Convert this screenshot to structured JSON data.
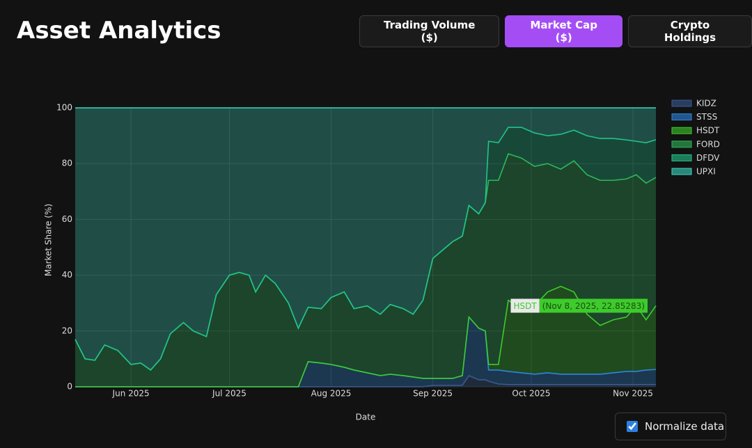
{
  "header": {
    "title": "Asset Analytics",
    "tabs": [
      {
        "label": "Trading Volume ($)",
        "active": false
      },
      {
        "label": "Market Cap ($)",
        "active": true
      },
      {
        "label": "Crypto Holdings",
        "active": false
      }
    ]
  },
  "controls": {
    "normalize": {
      "label": "Normalize data",
      "checked": true
    }
  },
  "chart_data": {
    "type": "stacked-area",
    "x_label": "Date",
    "y_label": "Market Share (%)",
    "x": [
      "2025-05-15",
      "2025-05-18",
      "2025-05-21",
      "2025-05-24",
      "2025-05-28",
      "2025-06-01",
      "2025-06-04",
      "2025-06-07",
      "2025-06-10",
      "2025-06-13",
      "2025-06-17",
      "2025-06-20",
      "2025-06-24",
      "2025-06-27",
      "2025-07-01",
      "2025-07-04",
      "2025-07-07",
      "2025-07-09",
      "2025-07-12",
      "2025-07-15",
      "2025-07-19",
      "2025-07-22",
      "2025-07-25",
      "2025-07-29",
      "2025-08-01",
      "2025-08-05",
      "2025-08-08",
      "2025-08-12",
      "2025-08-16",
      "2025-08-19",
      "2025-08-23",
      "2025-08-26",
      "2025-08-29",
      "2025-09-01",
      "2025-09-04",
      "2025-09-07",
      "2025-09-10",
      "2025-09-12",
      "2025-09-15",
      "2025-09-17",
      "2025-09-18",
      "2025-09-21",
      "2025-09-24",
      "2025-09-28",
      "2025-10-02",
      "2025-10-06",
      "2025-10-10",
      "2025-10-14",
      "2025-10-18",
      "2025-10-22",
      "2025-10-26",
      "2025-10-30",
      "2025-11-02",
      "2025-11-05",
      "2025-11-08"
    ],
    "xlim": [
      "2025-05-15",
      "2025-11-08"
    ],
    "xticks": [
      {
        "value": "2025-06-01",
        "label": "Jun 2025"
      },
      {
        "value": "2025-07-01",
        "label": "Jul 2025"
      },
      {
        "value": "2025-08-01",
        "label": "Aug 2025"
      },
      {
        "value": "2025-09-01",
        "label": "Sep 2025"
      },
      {
        "value": "2025-10-01",
        "label": "Oct 2025"
      },
      {
        "value": "2025-11-01",
        "label": "Nov 2025"
      }
    ],
    "ylim": [
      0,
      100
    ],
    "yticks": [
      0,
      20,
      40,
      60,
      80,
      100
    ],
    "grid": true,
    "series": [
      {
        "name": "KIDZ",
        "color": "#3b5a92",
        "values": [
          0,
          0,
          0,
          0,
          0,
          0,
          0,
          0,
          0,
          0,
          0,
          0,
          0,
          0,
          0,
          0,
          0,
          0,
          0,
          0,
          0,
          0,
          0,
          0,
          0,
          0,
          0,
          0,
          0,
          0,
          0,
          0,
          0,
          0.5,
          0.5,
          0.5,
          0.5,
          4,
          2.5,
          2.5,
          2,
          1,
          0.8,
          0.8,
          0.8,
          0.8,
          0.8,
          0.8,
          0.8,
          0.8,
          0.8,
          0.8,
          0.8,
          0.8,
          0.8
        ]
      },
      {
        "name": "STSS",
        "color": "#2d86e0",
        "values": [
          0,
          0,
          0,
          0,
          0,
          0,
          0,
          0,
          0,
          0,
          0,
          0,
          0,
          0,
          0,
          0,
          0,
          0,
          0,
          0,
          0,
          0,
          9,
          8.5,
          8,
          7,
          6,
          5,
          4,
          4.5,
          4,
          3.5,
          3,
          2.5,
          2.5,
          2.5,
          3.5,
          21,
          18.5,
          17.5,
          4,
          5,
          4.7,
          4.2,
          3.7,
          4.2,
          3.7,
          3.7,
          3.7,
          3.7,
          4.2,
          4.7,
          4.7,
          5.2,
          5.4
        ]
      },
      {
        "name": "HSDT",
        "color": "#3ecb2c",
        "values": [
          0,
          0,
          0,
          0,
          0,
          0,
          0,
          0,
          0,
          0,
          0,
          0,
          0,
          0,
          0,
          0,
          0,
          0,
          0,
          0,
          0,
          0,
          0,
          0,
          0,
          0,
          0,
          0,
          0,
          0,
          0,
          0,
          0,
          0,
          0,
          0,
          0,
          0,
          0,
          0,
          2,
          2,
          25.5,
          23,
          24.5,
          29,
          31.5,
          29.5,
          21.5,
          17.5,
          19,
          19.5,
          23.5,
          18,
          22.85283
        ]
      },
      {
        "name": "FORD",
        "color": "#2fb85a",
        "values": [
          17,
          10,
          9.5,
          15,
          13,
          8,
          8.5,
          6,
          10,
          19,
          23,
          20,
          18,
          33,
          40,
          41,
          40,
          34,
          40,
          37,
          30,
          21,
          19.5,
          19.5,
          24,
          27,
          22,
          24,
          22,
          25,
          24,
          22.5,
          28,
          43,
          46,
          49,
          50,
          40,
          41,
          46,
          66,
          66,
          52.5,
          54,
          50,
          46,
          42,
          47,
          50,
          52,
          50,
          49.5,
          47,
          49,
          46
        ]
      },
      {
        "name": "DFDV",
        "color": "#22c48a",
        "values": [
          0,
          0,
          0,
          0,
          0,
          0,
          0,
          0,
          0,
          0,
          0,
          0,
          0,
          0,
          0,
          0,
          0,
          0,
          0,
          0,
          0,
          0,
          0,
          0,
          0,
          0,
          0,
          0,
          0,
          0,
          0,
          0,
          0,
          0,
          0,
          0,
          0,
          0,
          0,
          0,
          14,
          13.5,
          9.5,
          11,
          12,
          10,
          12.5,
          11,
          14,
          15,
          15,
          14,
          12,
          14.5,
          13.5
        ]
      },
      {
        "name": "UPXI",
        "color": "#3cd6c0",
        "values": [
          83,
          90,
          90.5,
          85,
          87,
          92,
          91.5,
          94,
          90,
          81,
          77,
          80,
          82,
          67,
          60,
          59,
          60,
          66,
          60,
          63,
          70,
          79,
          71.5,
          72,
          68,
          66,
          72,
          71,
          74,
          70.5,
          72,
          74,
          69,
          54,
          51,
          48,
          46,
          35,
          38,
          34,
          12,
          12.5,
          7,
          7,
          9,
          10,
          9.5,
          8,
          10,
          11,
          11,
          11.5,
          12,
          12.5,
          11.44717
        ]
      }
    ],
    "tooltip": {
      "label": "HSDT",
      "text": "(Nov 8, 2025, 22.85283)"
    }
  }
}
